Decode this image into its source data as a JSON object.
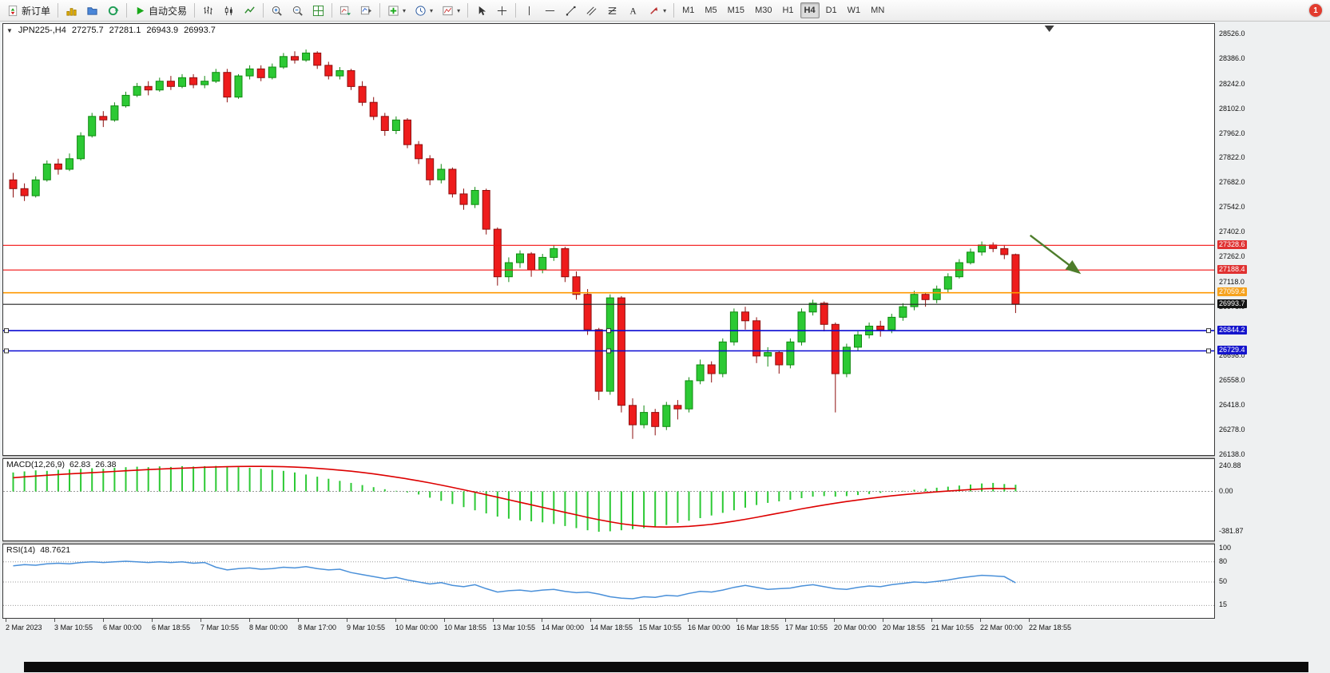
{
  "icons": {
    "collapse_arrow": "▼",
    "dropdown_caret": "▾"
  },
  "toolbar": {
    "new_order_label": "新订单",
    "auto_trading_label": "自动交易",
    "timeframes": [
      "M1",
      "M5",
      "M15",
      "M30",
      "H1",
      "H4",
      "D1",
      "W1",
      "MN"
    ],
    "active_timeframe": "H4",
    "notification_count": "1"
  },
  "chart": {
    "header": {
      "symbol": "JPN225-,H4",
      "open": "27275.7",
      "high": "27281.1",
      "low": "26943.9",
      "close": "26993.7"
    }
  },
  "indicators": {
    "macd": {
      "name": "MACD(12,26,9)",
      "main_value": "62.83",
      "signal_value": "26.38"
    },
    "rsi": {
      "name": "RSI(14)",
      "value": "48.7621"
    }
  },
  "chart_data": {
    "type": "candlestick",
    "symbol": "JPN225-",
    "timeframe": "H4",
    "ylim": [
      26138.0,
      28526.0
    ],
    "price_ticks": [
      28526.0,
      28386.0,
      28242.0,
      28102.0,
      27962.0,
      27822.0,
      27682.0,
      27542.0,
      27402.0,
      27262.0,
      27118.0,
      26978.0,
      26838.0,
      26698.0,
      26558.0,
      26418.0,
      26278.0,
      26138.0
    ],
    "colors": {
      "up": "#2cc934",
      "up_stroke": "#118a11",
      "down": "#ee1c1c",
      "down_stroke": "#8e0f0f",
      "macd_hist": "#2cc934",
      "macd_signal": "#dd0000",
      "rsi_line": "#4a90d9"
    },
    "ohlc": [
      [
        27700,
        27740,
        27600,
        27650
      ],
      [
        27650,
        27680,
        27580,
        27610
      ],
      [
        27610,
        27720,
        27600,
        27700
      ],
      [
        27700,
        27810,
        27690,
        27790
      ],
      [
        27790,
        27820,
        27730,
        27760
      ],
      [
        27760,
        27850,
        27750,
        27820
      ],
      [
        27820,
        27970,
        27810,
        27950
      ],
      [
        27950,
        28080,
        27940,
        28060
      ],
      [
        28060,
        28090,
        28000,
        28040
      ],
      [
        28040,
        28140,
        28030,
        28120
      ],
      [
        28120,
        28200,
        28110,
        28180
      ],
      [
        28180,
        28250,
        28170,
        28230
      ],
      [
        28230,
        28260,
        28180,
        28210
      ],
      [
        28210,
        28280,
        28200,
        28260
      ],
      [
        28260,
        28290,
        28210,
        28230
      ],
      [
        28230,
        28300,
        28220,
        28280
      ],
      [
        28280,
        28300,
        28220,
        28240
      ],
      [
        28240,
        28290,
        28220,
        28260
      ],
      [
        28260,
        28330,
        28250,
        28310
      ],
      [
        28310,
        28330,
        28140,
        28170
      ],
      [
        28170,
        28300,
        28160,
        28290
      ],
      [
        28290,
        28350,
        28270,
        28330
      ],
      [
        28330,
        28350,
        28260,
        28280
      ],
      [
        28280,
        28360,
        28270,
        28340
      ],
      [
        28340,
        28420,
        28330,
        28400
      ],
      [
        28400,
        28430,
        28360,
        28380
      ],
      [
        28380,
        28440,
        28370,
        28420
      ],
      [
        28420,
        28430,
        28330,
        28350
      ],
      [
        28350,
        28370,
        28270,
        28290
      ],
      [
        28290,
        28340,
        28270,
        28320
      ],
      [
        28320,
        28330,
        28210,
        28230
      ],
      [
        28230,
        28260,
        28120,
        28140
      ],
      [
        28140,
        28170,
        28040,
        28060
      ],
      [
        28060,
        28080,
        27950,
        27980
      ],
      [
        27980,
        28060,
        27960,
        28040
      ],
      [
        28040,
        28050,
        27880,
        27900
      ],
      [
        27900,
        27920,
        27790,
        27820
      ],
      [
        27820,
        27840,
        27670,
        27700
      ],
      [
        27700,
        27790,
        27680,
        27760
      ],
      [
        27760,
        27770,
        27600,
        27620
      ],
      [
        27620,
        27650,
        27530,
        27560
      ],
      [
        27560,
        27660,
        27540,
        27640
      ],
      [
        27640,
        27650,
        27390,
        27420
      ],
      [
        27420,
        27430,
        27100,
        27150
      ],
      [
        27150,
        27260,
        27120,
        27230
      ],
      [
        27230,
        27300,
        27200,
        27280
      ],
      [
        27280,
        27290,
        27150,
        27190
      ],
      [
        27190,
        27280,
        27170,
        27260
      ],
      [
        27260,
        27330,
        27240,
        27310
      ],
      [
        27310,
        27320,
        27120,
        27150
      ],
      [
        27150,
        27180,
        27020,
        27050
      ],
      [
        27050,
        27080,
        26820,
        26850
      ],
      [
        26850,
        26860,
        26450,
        26500
      ],
      [
        26500,
        27050,
        26480,
        27030
      ],
      [
        27030,
        27040,
        26380,
        26420
      ],
      [
        26420,
        26460,
        26230,
        26310
      ],
      [
        26310,
        26420,
        26290,
        26380
      ],
      [
        26380,
        26400,
        26250,
        26300
      ],
      [
        26300,
        26440,
        26280,
        26420
      ],
      [
        26420,
        26450,
        26340,
        26400
      ],
      [
        26400,
        26580,
        26380,
        26560
      ],
      [
        26560,
        26680,
        26540,
        26650
      ],
      [
        26650,
        26670,
        26550,
        26600
      ],
      [
        26600,
        26800,
        26580,
        26780
      ],
      [
        26780,
        26970,
        26760,
        26950
      ],
      [
        26950,
        26980,
        26850,
        26900
      ],
      [
        26900,
        26920,
        26660,
        26700
      ],
      [
        26700,
        26750,
        26640,
        26720
      ],
      [
        26720,
        26730,
        26600,
        26650
      ],
      [
        26650,
        26800,
        26630,
        26780
      ],
      [
        26780,
        26970,
        26760,
        26950
      ],
      [
        26950,
        27020,
        26930,
        27000
      ],
      [
        27000,
        27010,
        26840,
        26880
      ],
      [
        26880,
        26890,
        26380,
        26600
      ],
      [
        26600,
        26770,
        26580,
        26750
      ],
      [
        26750,
        26840,
        26730,
        26820
      ],
      [
        26820,
        26890,
        26800,
        26870
      ],
      [
        26870,
        26900,
        26810,
        26850
      ],
      [
        26850,
        26940,
        26830,
        26920
      ],
      [
        26920,
        27000,
        26900,
        26980
      ],
      [
        26980,
        27070,
        26960,
        27050
      ],
      [
        27050,
        27060,
        26980,
        27020
      ],
      [
        27020,
        27100,
        27000,
        27080
      ],
      [
        27080,
        27170,
        27060,
        27150
      ],
      [
        27150,
        27250,
        27140,
        27230
      ],
      [
        27230,
        27310,
        27220,
        27290
      ],
      [
        27290,
        27350,
        27270,
        27330
      ],
      [
        27330,
        27345,
        27290,
        27310
      ],
      [
        27310,
        27330,
        27250,
        27276
      ],
      [
        27275.7,
        27281.1,
        26943.9,
        26993.7
      ]
    ],
    "x_labels": [
      "2 Mar 2023",
      "3 Mar 10:55",
      "6 Mar 00:00",
      "6 Mar 18:55",
      "7 Mar 10:55",
      "8 Mar 00:00",
      "8 Mar 17:00",
      "9 Mar 10:55",
      "10 Mar 00:00",
      "10 Mar 18:55",
      "13 Mar 10:55",
      "14 Mar 00:00",
      "14 Mar 18:55",
      "15 Mar 10:55",
      "16 Mar 00:00",
      "16 Mar 18:55",
      "17 Mar 10:55",
      "20 Mar 00:00",
      "20 Mar 18:55",
      "21 Mar 10:55",
      "22 Mar 00:00",
      "22 Mar 18:55"
    ],
    "hlines": [
      {
        "price": 27328.6,
        "label": "27328.6",
        "color": "#f21111",
        "badge": "#e03131",
        "width": 1.1,
        "handles": false
      },
      {
        "price": 27188.4,
        "label": "27188.4",
        "color": "#f21111",
        "badge": "#e03131",
        "width": 1.1,
        "handles": false
      },
      {
        "price": 27059.4,
        "label": "27059.4",
        "color": "#ff9900",
        "badge": "#f6a21d",
        "width": 1.6,
        "handles": false
      },
      {
        "price": 26993.7,
        "label": "26993.7",
        "color": "#222222",
        "badge": "#141414",
        "width": 1.1,
        "handles": false
      },
      {
        "price": 26844.2,
        "label": "26844.2",
        "color": "#0a0ad2",
        "badge": "#1414cc",
        "width": 1.6,
        "handles": true
      },
      {
        "price": 26729.4,
        "label": "26729.4",
        "color": "#0a0ad2",
        "badge": "#1414cc",
        "width": 1.6,
        "handles": true
      }
    ],
    "arrow": {
      "from_bar": 90.3,
      "from_price": 27385,
      "to_bar": 94.6,
      "to_price": 27175,
      "color": "#4e7d2b"
    },
    "shift_marker_bar": 92,
    "macd": {
      "title": "MACD(12,26,9)",
      "ylim": [
        -460,
        300
      ],
      "axis": [
        240.88,
        0.0,
        -381.87
      ],
      "histogram": [
        180,
        190,
        200,
        195,
        205,
        210,
        215,
        220,
        215,
        225,
        230,
        235,
        230,
        238,
        232,
        240,
        236,
        240,
        242,
        238,
        230,
        225,
        215,
        205,
        195,
        180,
        160,
        140,
        120,
        100,
        80,
        60,
        40,
        20,
        5,
        -10,
        -30,
        -60,
        -90,
        -120,
        -150,
        -180,
        -210,
        -240,
        -260,
        -275,
        -285,
        -295,
        -310,
        -330,
        -350,
        -370,
        -385,
        -380,
        -370,
        -360,
        -350,
        -340,
        -320,
        -300,
        -280,
        -255,
        -230,
        -205,
        -180,
        -155,
        -130,
        -110,
        -95,
        -80,
        -65,
        -50,
        -45,
        -50,
        -45,
        -35,
        -25,
        -15,
        -5,
        5,
        15,
        25,
        35,
        45,
        55,
        65,
        75,
        80,
        70,
        62.83
      ],
      "signal": [
        130,
        138,
        146,
        153,
        160,
        166,
        172,
        178,
        184,
        190,
        196,
        202,
        207,
        212,
        217,
        221,
        225,
        229,
        232,
        235,
        237,
        238,
        238,
        237,
        235,
        231,
        226,
        219,
        211,
        202,
        192,
        180,
        166,
        151,
        135,
        118,
        100,
        80,
        60,
        38,
        15,
        -8,
        -32,
        -56,
        -80,
        -104,
        -128,
        -152,
        -176,
        -200,
        -224,
        -248,
        -270,
        -290,
        -308,
        -322,
        -332,
        -338,
        -340,
        -338,
        -333,
        -325,
        -314,
        -300,
        -284,
        -266,
        -247,
        -227,
        -207,
        -187,
        -167,
        -148,
        -130,
        -113,
        -97,
        -82,
        -68,
        -55,
        -43,
        -32,
        -22,
        -13,
        -5,
        3,
        10,
        17,
        23,
        28,
        26,
        26.38
      ]
    },
    "rsi": {
      "title": "RSI(14)",
      "ylim": [
        0,
        100
      ],
      "levels": [
        80,
        50,
        15
      ],
      "axis": [
        100,
        80,
        50,
        15
      ],
      "values": [
        74,
        76,
        75,
        77,
        78,
        77,
        79,
        80,
        79,
        80,
        81,
        80,
        79,
        80,
        79,
        80,
        78,
        79,
        72,
        68,
        70,
        71,
        69,
        70,
        72,
        71,
        73,
        70,
        68,
        69,
        64,
        61,
        58,
        55,
        57,
        53,
        50,
        47,
        49,
        45,
        43,
        46,
        40,
        35,
        37,
        38,
        36,
        38,
        39,
        36,
        34,
        35,
        32,
        28,
        26,
        25,
        28,
        27,
        30,
        29,
        33,
        36,
        35,
        38,
        42,
        45,
        42,
        39,
        40,
        41,
        44,
        46,
        43,
        40,
        39,
        42,
        44,
        43,
        46,
        48,
        50,
        49,
        51,
        53,
        56,
        58,
        60,
        59,
        58,
        48.76
      ]
    }
  }
}
